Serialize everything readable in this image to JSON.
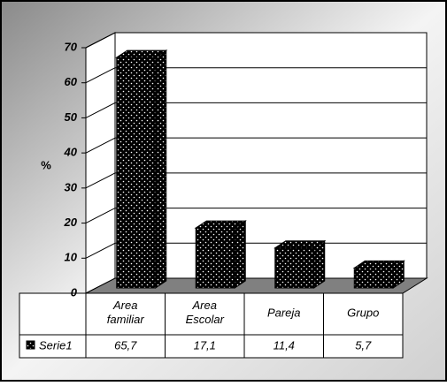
{
  "chart_data": {
    "type": "bar3d",
    "y_label": "%",
    "categories": [
      "Area familiar",
      "Area Escolar",
      "Pareja",
      "Grupo"
    ],
    "series": [
      {
        "name": "Serie1",
        "color": "#000000",
        "values": [
          65.7,
          17.1,
          11.4,
          5.7
        ],
        "value_labels": [
          "65,7",
          "17,1",
          "11,4",
          "5,7"
        ]
      }
    ],
    "ylim": [
      0,
      70
    ],
    "yticks": [
      0,
      10,
      20,
      30,
      40,
      50,
      60,
      70
    ],
    "grid": true
  }
}
